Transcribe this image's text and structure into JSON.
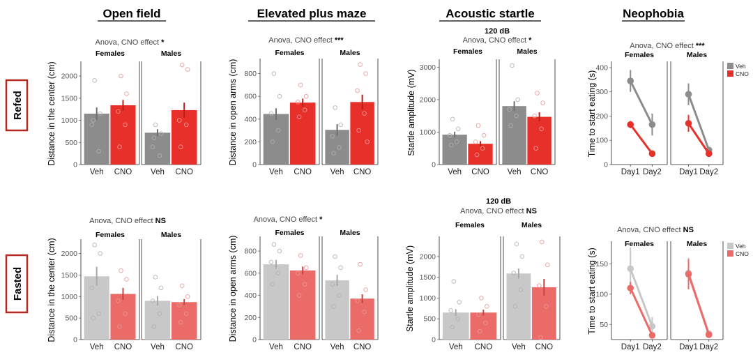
{
  "figure_titles": [
    "Open field",
    "Elevated plus maze",
    "Acoustic startle",
    "Neophobia"
  ],
  "row_labels": [
    "Refed",
    "Fasted"
  ],
  "colors": {
    "refed_veh": "#8c8c8c",
    "refed_cno": "#e8302a",
    "fasted_veh": "#c8c8c8",
    "fasted_cno": "#ea6b68",
    "row_box": "#b22a22"
  },
  "chart_data": [
    {
      "id": "of-refed",
      "type": "bar",
      "title": "Open field",
      "row": "Refed",
      "stat_prefix": "Anova, CNO effect",
      "stat_mark": "*",
      "stat_size": "11",
      "ylabel": "Distance in the center (cm)",
      "ylim": [
        0,
        2300
      ],
      "yticks": [
        0,
        500,
        1000,
        1500,
        2000
      ],
      "categories": [
        "Veh",
        "CNO"
      ],
      "facets": [
        {
          "label": "Females",
          "values": [
            1150,
            1340
          ],
          "errors": [
            140,
            120
          ],
          "points": [
            [
              1900,
              1150,
              900,
              300,
              1000
            ],
            [
              2000,
              1600,
              1200,
              900,
              400
            ]
          ]
        },
        {
          "label": "Males",
          "values": [
            720,
            1230
          ],
          "errors": [
            80,
            170
          ],
          "points": [
            [
              900,
              700,
              400,
              200,
              600
            ],
            [
              2250,
              2150,
              1000,
              900,
              400
            ]
          ]
        }
      ]
    },
    {
      "id": "epm-refed",
      "type": "bar",
      "title": "Elevated plus maze",
      "row": "Refed",
      "stat_prefix": "Anova, CNO effect",
      "stat_mark": "***",
      "stat_size": "11",
      "ylabel": "Distance in open arms (cm)",
      "ylim": [
        0,
        920
      ],
      "yticks": [
        0,
        200,
        400,
        600,
        800
      ],
      "categories": [
        "Veh",
        "CNO"
      ],
      "facets": [
        {
          "label": "Females",
          "values": [
            445,
            545
          ],
          "errors": [
            50,
            35
          ],
          "points": [
            [
              800,
              600,
              450,
              300,
              200
            ],
            [
              700,
              600,
              550,
              480,
              420
            ]
          ]
        },
        {
          "label": "Males",
          "values": [
            305,
            550
          ],
          "errors": [
            50,
            65
          ],
          "points": [
            [
              500,
              350,
              250,
              150,
              100
            ],
            [
              880,
              800,
              650,
              450,
              300,
              200
            ]
          ]
        }
      ]
    },
    {
      "id": "as-refed",
      "type": "bar",
      "title": "Acoustic startle",
      "row": "Refed",
      "header": "120 dB",
      "stat_prefix": "Anova, CNO effect",
      "stat_mark": "*",
      "stat_size": "11",
      "ylabel": "Startle amplitude (mV)",
      "ylim": [
        0,
        3200
      ],
      "yticks": [
        0,
        1000,
        2000,
        3000
      ],
      "categories": [
        "Veh",
        "CNO"
      ],
      "facets": [
        {
          "label": "Females",
          "values": [
            920,
            640
          ],
          "errors": [
            90,
            80
          ],
          "points": [
            [
              1400,
              1100,
              900,
              700,
              600
            ],
            [
              1200,
              900,
              700,
              500,
              300
            ]
          ]
        },
        {
          "label": "Males",
          "values": [
            1800,
            1470
          ],
          "errors": [
            150,
            140
          ],
          "points": [
            [
              3050,
              2000,
              1700,
              1500,
              1200
            ],
            [
              2200,
              1900,
              1500,
              1100,
              500
            ]
          ]
        }
      ]
    },
    {
      "id": "neo-refed",
      "type": "line",
      "title": "Neophobia",
      "row": "Refed",
      "stat_prefix": "Anova, CNO effect",
      "stat_mark": "***",
      "stat_size": "10",
      "ylabel": "Time to start eating (s)",
      "ylim": [
        0,
        420
      ],
      "yticks": [
        0,
        100,
        200,
        300,
        400
      ],
      "categories": [
        "Day1",
        "Day2"
      ],
      "legend": [
        "Veh",
        "CNO"
      ],
      "facets": [
        {
          "label": "Females",
          "series": [
            [
              345,
              165
            ],
            [
              165,
              45
            ]
          ],
          "errors": [
            [
              45,
              45
            ],
            [
              15,
              5
            ]
          ]
        },
        {
          "label": "Males",
          "series": [
            [
              290,
              60
            ],
            [
              170,
              45
            ]
          ],
          "errors": [
            [
              45,
              10
            ],
            [
              35,
              5
            ]
          ]
        }
      ]
    },
    {
      "id": "of-fasted",
      "type": "bar",
      "title": "Open field",
      "row": "Fasted",
      "stat_prefix": "Anova, CNO effect",
      "stat_mark": "NS",
      "stat_size": "11",
      "ylabel": "Distance in the center (cm)",
      "ylim": [
        0,
        2300
      ],
      "yticks": [
        0,
        500,
        1000,
        1500,
        2000
      ],
      "categories": [
        "Veh",
        "CNO"
      ],
      "facets": [
        {
          "label": "Females",
          "values": [
            1470,
            1060
          ],
          "errors": [
            220,
            140
          ],
          "points": [
            [
              2200,
              2000,
              1200,
              600,
              500
            ],
            [
              1600,
              1400,
              900,
              600,
              300
            ]
          ]
        },
        {
          "label": "Males",
          "values": [
            900,
            870
          ],
          "errors": [
            110,
            70
          ],
          "points": [
            [
              1450,
              1200,
              900,
              600,
              300
            ],
            [
              1250,
              1000,
              800,
              600,
              400
            ]
          ]
        }
      ]
    },
    {
      "id": "epm-fasted",
      "type": "bar",
      "title": "Elevated plus maze",
      "row": "Fasted",
      "stat_prefix": "Anova, CNO effect",
      "stat_mark": "*",
      "stat_size": "11",
      "ylabel": "Distance in open arms (cm)",
      "ylim": [
        0,
        920
      ],
      "yticks": [
        0,
        200,
        400,
        600,
        800
      ],
      "categories": [
        "Veh",
        "CNO"
      ],
      "facets": [
        {
          "label": "Females",
          "values": [
            680,
            625
          ],
          "errors": [
            40,
            35
          ],
          "points": [
            [
              860,
              800,
              700,
              600,
              500
            ],
            [
              760,
              650,
              600,
              500,
              400
            ]
          ]
        },
        {
          "label": "Males",
          "values": [
            535,
            370
          ],
          "errors": [
            50,
            40
          ],
          "points": [
            [
              750,
              650,
              500,
              400,
              300
            ],
            [
              680,
              450,
              350,
              250,
              80
            ]
          ]
        }
      ]
    },
    {
      "id": "as-fasted",
      "type": "bar",
      "title": "Acoustic startle",
      "row": "Fasted",
      "header": "120 dB",
      "stat_prefix": "Anova, CNO effect",
      "stat_mark": "NS",
      "stat_size": "12.5",
      "ylabel": "Startle amplitude (mV)",
      "ylim": [
        0,
        2450
      ],
      "yticks": [
        0,
        500,
        1000,
        1500,
        2000
      ],
      "categories": [
        "Veh",
        "CNO"
      ],
      "facets": [
        {
          "label": "Females",
          "values": [
            650,
            650
          ],
          "errors": [
            80,
            70
          ],
          "points": [
            [
              1400,
              900,
              700,
              500,
              300
            ],
            [
              1000,
              800,
              600,
              400,
              200
            ]
          ]
        },
        {
          "label": "Males",
          "values": [
            1590,
            1260
          ],
          "errors": [
            120,
            200
          ],
          "points": [
            [
              2300,
              2000,
              1600,
              1200,
              800
            ],
            [
              2350,
              1800,
              1300,
              800,
              50
            ]
          ]
        }
      ]
    },
    {
      "id": "neo-fasted",
      "type": "line",
      "title": "Neophobia",
      "row": "Fasted",
      "stat_prefix": "Anova, CNO effect",
      "stat_mark": "NS",
      "stat_size": "10",
      "ylabel": "Time to start eating (s)",
      "ylim": [
        25,
        185
      ],
      "yticks": [
        50,
        100,
        150
      ],
      "categories": [
        "Day1",
        "Day2"
      ],
      "legend": [
        "Veh",
        "CNO"
      ],
      "facets": [
        {
          "label": "Females",
          "series": [
            [
              142,
              47
            ],
            [
              110,
              32
            ]
          ],
          "errors": [
            [
              35,
              15
            ],
            [
              10,
              5
            ]
          ]
        },
        {
          "label": "Males",
          "series": [
            [
              135,
              35
            ],
            [
              133,
              33
            ]
          ],
          "errors": [
            [
              25,
              5
            ],
            [
              25,
              5
            ]
          ]
        }
      ]
    }
  ]
}
